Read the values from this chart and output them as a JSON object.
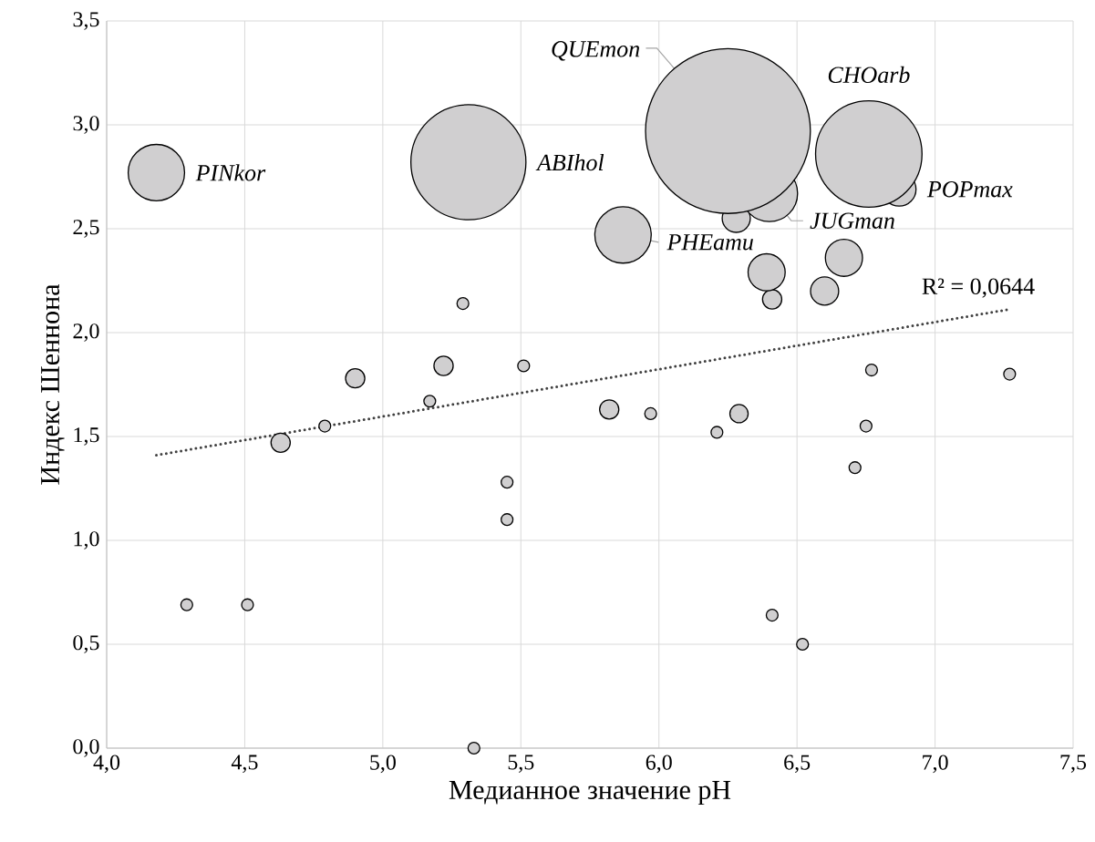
{
  "chart_data": {
    "type": "bubble",
    "xlabel": "Медианное значение pH",
    "ylabel": "Индекс Шеннона",
    "xlim": [
      4.0,
      7.5
    ],
    "ylim": [
      0,
      3.5
    ],
    "xticks": [
      {
        "value": 4.0,
        "label": "4,0"
      },
      {
        "value": 4.5,
        "label": "4,5"
      },
      {
        "value": 5.0,
        "label": "5,0"
      },
      {
        "value": 5.5,
        "label": "5,5"
      },
      {
        "value": 6.0,
        "label": "6,0"
      },
      {
        "value": 6.5,
        "label": "6,5"
      },
      {
        "value": 7.0,
        "label": "7,0"
      },
      {
        "value": 7.5,
        "label": "7,5"
      }
    ],
    "yticks": [
      {
        "value": 0,
        "label": "0,0"
      },
      {
        "value": 0.5,
        "label": "0,5"
      },
      {
        "value": 1.0,
        "label": "1,0"
      },
      {
        "value": 1.5,
        "label": "1,5"
      },
      {
        "value": 2.0,
        "label": "2,0"
      },
      {
        "value": 2.5,
        "label": "2,5"
      },
      {
        "value": 3.0,
        "label": "3,0"
      },
      {
        "value": 3.5,
        "label": "3,5"
      }
    ],
    "grid": true,
    "series": [
      {
        "color": "#d0cfd0",
        "x": [
          4.29,
          4.51,
          4.79,
          5.17,
          5.29,
          5.33,
          5.45,
          5.45,
          5.51,
          5.97,
          6.21,
          6.41,
          6.52,
          6.71,
          6.75,
          6.77,
          7.27,
          6.29,
          4.63,
          4.9,
          5.22,
          5.82,
          6.41,
          6.6,
          6.28,
          6.39,
          6.67,
          6.87,
          6.4,
          5.87,
          4.18,
          5.31,
          6.76,
          6.25
        ],
        "values": [
          0.69,
          0.69,
          1.55,
          1.67,
          2.14,
          0.0,
          1.28,
          1.1,
          1.84,
          1.61,
          1.52,
          0.64,
          0.5,
          1.35,
          1.55,
          1.82,
          1.8,
          1.61,
          1.47,
          1.78,
          1.84,
          1.63,
          2.16,
          2.2,
          2.55,
          2.29,
          2.36,
          2.69,
          2.67,
          2.47,
          2.77,
          2.82,
          2.86,
          2.97
        ],
        "sizes": [
          0.006,
          0.006,
          0.006,
          0.006,
          0.006,
          0.006,
          0.006,
          0.006,
          0.006,
          0.006,
          0.006,
          0.006,
          0.006,
          0.006,
          0.006,
          0.006,
          0.006,
          0.0136,
          0.015,
          0.015,
          0.015,
          0.015,
          0.015,
          0.031,
          0.031,
          0.053,
          0.053,
          0.044,
          0.12,
          0.12,
          0.12,
          0.49,
          0.42,
          1
        ],
        "value_labels": [
          null,
          null,
          null,
          null,
          null,
          null,
          null,
          null,
          null,
          null,
          null,
          null,
          null,
          null,
          null,
          null,
          null,
          null,
          null,
          null,
          null,
          null,
          null,
          null,
          null,
          null,
          null,
          "POPmax",
          "JUGman",
          "PHEamu",
          "PINkor",
          "ABIhol",
          "CHOarb",
          "QUEmon"
        ]
      },
      {
        "type": "line",
        "color": "#404040",
        "line_style": "dotted",
        "x": [
          4.18,
          7.26
        ],
        "values": [
          1.41,
          2.11
        ]
      }
    ],
    "annotations": [
      {
        "text": "R² = 0,0644",
        "x": 7.26,
        "y": 2.11
      }
    ]
  }
}
